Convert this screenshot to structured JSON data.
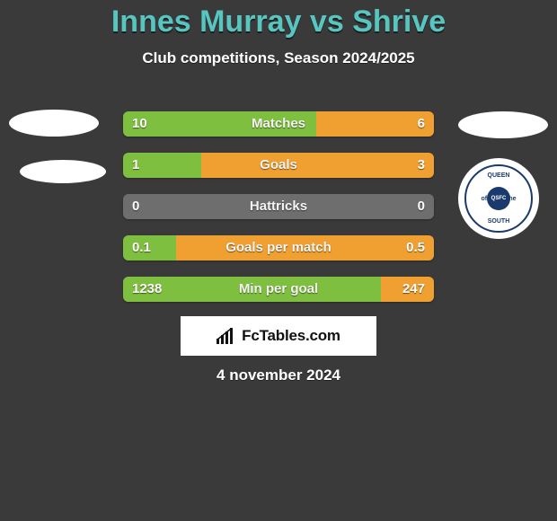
{
  "header": {
    "title": "Innes Murray vs Shrive",
    "title_color": "#57c6c1",
    "title_fontsize": 34,
    "subtitle": "Club competitions, Season 2024/2025",
    "subtitle_fontsize": 17
  },
  "colors": {
    "background": "#3a3a3a",
    "bar_bg": "#6e6e6e",
    "left_accent": "#7fbf3f",
    "right_accent": "#f0a030",
    "text": "#ffffff"
  },
  "bars": [
    {
      "label": "Matches",
      "left_val": "10",
      "right_val": "6",
      "left_pct": 62,
      "right_pct": 38
    },
    {
      "label": "Goals",
      "left_val": "1",
      "right_val": "3",
      "left_pct": 25,
      "right_pct": 75
    },
    {
      "label": "Hattricks",
      "left_val": "0",
      "right_val": "0",
      "left_pct": 0,
      "right_pct": 0
    },
    {
      "label": "Goals per match",
      "left_val": "0.1",
      "right_val": "0.5",
      "left_pct": 17,
      "right_pct": 83
    },
    {
      "label": "Min per goal",
      "left_val": "1238",
      "right_val": "247",
      "left_pct": 83,
      "right_pct": 17
    }
  ],
  "brand": {
    "text": "FcTables.com"
  },
  "date": {
    "text": "4 november 2024",
    "fontsize": 17
  },
  "badges": {
    "br_mid_left": "of",
    "br_mid_right": "the",
    "br_center": "QSFC"
  }
}
